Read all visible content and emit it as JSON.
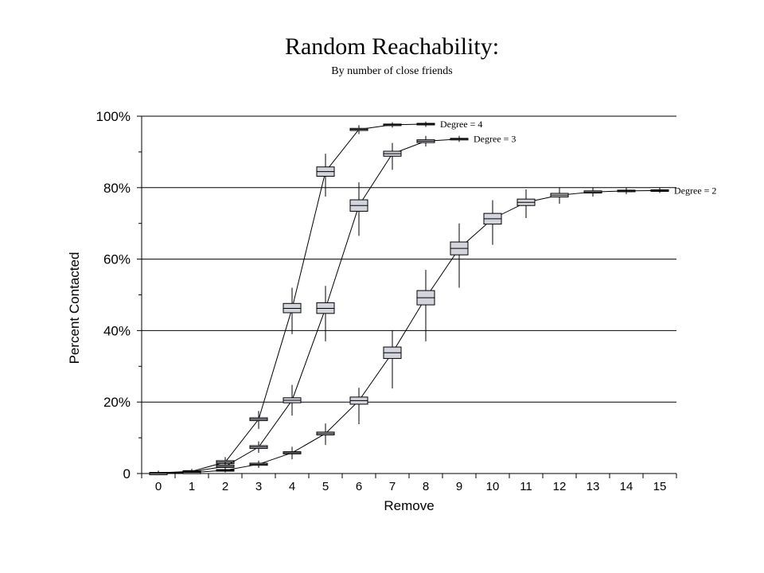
{
  "chart_data": {
    "type": "line",
    "title": "Random Reachability:",
    "subtitle": "By number of close friends",
    "xlabel": "Remove",
    "ylabel": "Percent Contacted",
    "x": [
      0,
      1,
      2,
      3,
      4,
      5,
      6,
      7,
      8,
      9,
      10,
      11,
      12,
      13,
      14,
      15
    ],
    "xlim": [
      -0.5,
      15.5
    ],
    "ylim": [
      0,
      100
    ],
    "ytick_values": [
      0,
      20,
      40,
      60,
      80,
      100
    ],
    "ytick_labels": [
      "0",
      "20%",
      "40%",
      "60%",
      "80%",
      "100%"
    ],
    "grid": true,
    "style": "box-plot markers at each x with whiskers, connected by median line",
    "series": [
      {
        "name": "Degree = 4",
        "label": "Degree = 4",
        "x": [
          0,
          1,
          2,
          3,
          4,
          5,
          6,
          7,
          8
        ],
        "values": [
          0.2,
          0.6,
          3.2,
          15.2,
          46.2,
          84.5,
          96.3,
          97.6,
          97.8
        ],
        "box_low": [
          0.1,
          0.4,
          2.8,
          14.8,
          45.0,
          83.2,
          96.0,
          97.4,
          97.6
        ],
        "box_high": [
          0.3,
          0.8,
          3.6,
          15.6,
          47.6,
          85.8,
          96.6,
          97.8,
          98.0
        ],
        "whisker_low": [
          0.0,
          0.2,
          1.5,
          12.5,
          39.0,
          77.5,
          95.0,
          96.8,
          97.0
        ],
        "whisker_high": [
          0.8,
          1.3,
          4.6,
          17.5,
          52.0,
          89.5,
          97.5,
          98.3,
          98.5
        ]
      },
      {
        "name": "Degree = 3",
        "label": "Degree = 3",
        "x": [
          0,
          1,
          2,
          3,
          4,
          5,
          6,
          7,
          8,
          9
        ],
        "values": [
          0.1,
          0.5,
          2.0,
          7.4,
          20.5,
          46.2,
          75.0,
          89.5,
          93.0,
          93.6
        ],
        "box_low": [
          0.0,
          0.3,
          1.7,
          7.0,
          19.8,
          44.8,
          73.4,
          88.8,
          92.6,
          93.4
        ],
        "box_high": [
          0.2,
          0.7,
          2.4,
          7.8,
          21.2,
          47.8,
          76.6,
          90.2,
          93.4,
          93.8
        ],
        "whisker_low": [
          0.0,
          0.1,
          1.0,
          5.8,
          16.2,
          37.0,
          66.5,
          85.0,
          91.5,
          92.8
        ],
        "whisker_high": [
          0.5,
          1.1,
          3.2,
          9.0,
          24.8,
          52.5,
          81.5,
          92.5,
          94.5,
          94.5
        ]
      },
      {
        "name": "Degree = 2",
        "label": "Degree = 2",
        "x": [
          0,
          1,
          2,
          3,
          4,
          5,
          6,
          7,
          8,
          9,
          10,
          11,
          12,
          13,
          14,
          15
        ],
        "values": [
          0.05,
          0.3,
          0.9,
          2.6,
          5.8,
          11.2,
          20.4,
          33.8,
          49.2,
          63.0,
          71.3,
          75.9,
          77.9,
          78.8,
          79.1,
          79.2
        ],
        "box_low": [
          0.0,
          0.2,
          0.7,
          2.3,
          5.5,
          10.8,
          19.4,
          32.2,
          47.2,
          61.2,
          69.8,
          75.0,
          77.4,
          78.5,
          78.9,
          79.0
        ],
        "box_high": [
          0.1,
          0.4,
          1.1,
          2.9,
          6.1,
          11.6,
          21.4,
          35.4,
          51.2,
          64.8,
          72.8,
          76.8,
          78.4,
          79.1,
          79.3,
          79.4
        ],
        "whisker_low": [
          0.0,
          0.0,
          0.3,
          1.6,
          4.0,
          8.0,
          13.8,
          23.8,
          37.0,
          52.0,
          64.0,
          71.5,
          75.5,
          77.5,
          78.2,
          78.5
        ],
        "whisker_high": [
          0.3,
          0.7,
          1.6,
          3.6,
          7.5,
          14.0,
          24.0,
          40.0,
          57.0,
          70.0,
          76.5,
          79.5,
          80.0,
          80.0,
          80.0,
          80.0
        ]
      }
    ]
  }
}
